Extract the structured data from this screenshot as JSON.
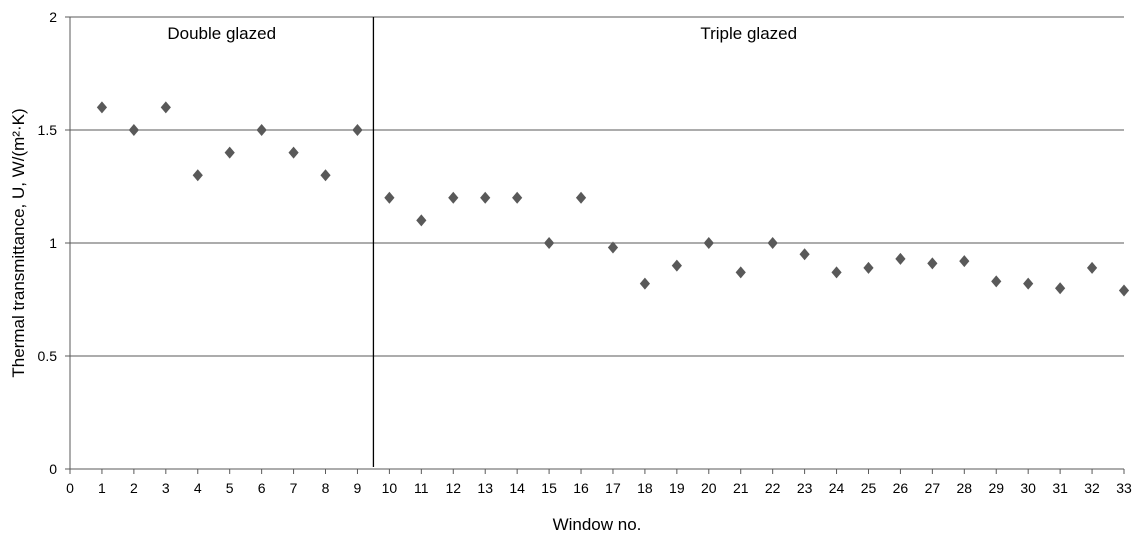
{
  "chart_data": {
    "type": "scatter",
    "xlabel": "Window no.",
    "ylabel": "Thermal transmittance, U, W/(m²·K)",
    "xlim": [
      0,
      33
    ],
    "ylim": [
      0,
      2
    ],
    "x_ticks": [
      "0",
      "1",
      "2",
      "3",
      "4",
      "5",
      "6",
      "7",
      "8",
      "9",
      "10",
      "11",
      "12",
      "13",
      "14",
      "15",
      "16",
      "17",
      "18",
      "19",
      "20",
      "21",
      "22",
      "23",
      "24",
      "25",
      "26",
      "27",
      "28",
      "29",
      "30",
      "31",
      "32",
      "33"
    ],
    "y_ticks": [
      "0",
      "0.5",
      "1",
      "1.5",
      "2"
    ],
    "grid": "horizontal",
    "divider_x": 9.5,
    "regions": [
      {
        "label": "Double glazed"
      },
      {
        "label": "Triple glazed"
      }
    ],
    "marker": "diamond",
    "marker_color": "#595959",
    "series": [
      {
        "x": [
          1,
          2,
          3,
          4,
          5,
          6,
          7,
          8,
          9,
          10,
          11,
          12,
          13,
          14,
          15,
          16,
          17,
          18,
          19,
          20,
          21,
          22,
          23,
          24,
          25,
          26,
          27,
          28,
          29,
          30,
          31,
          32,
          33
        ],
        "y": [
          1.6,
          1.5,
          1.6,
          1.3,
          1.4,
          1.5,
          1.4,
          1.3,
          1.5,
          1.2,
          1.1,
          1.2,
          1.2,
          1.2,
          1.0,
          1.2,
          0.98,
          0.82,
          0.9,
          1.0,
          0.87,
          1.0,
          0.95,
          0.87,
          0.89,
          0.93,
          0.91,
          0.92,
          0.83,
          0.82,
          0.8,
          0.89,
          0.79
        ]
      }
    ]
  }
}
